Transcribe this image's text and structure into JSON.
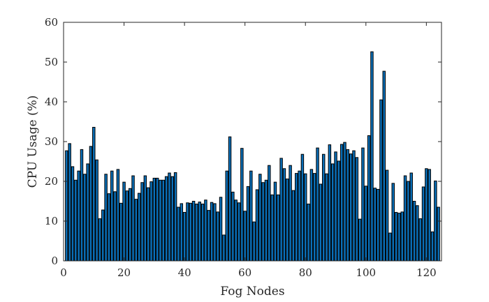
{
  "chart_data": {
    "type": "bar",
    "xlabel": "Fog Nodes",
    "ylabel": "CPU Usage (%)",
    "xlim": [
      0,
      125
    ],
    "ylim": [
      0,
      60
    ],
    "xticks": [
      0,
      20,
      40,
      60,
      80,
      100,
      120
    ],
    "yticks": [
      0,
      10,
      20,
      30,
      40,
      50,
      60
    ],
    "grid": false,
    "bar_color": "#0a6fb8",
    "x": [
      1,
      2,
      3,
      4,
      5,
      6,
      7,
      8,
      9,
      10,
      11,
      12,
      13,
      14,
      15,
      16,
      17,
      18,
      19,
      20,
      21,
      22,
      23,
      24,
      25,
      26,
      27,
      28,
      29,
      30,
      31,
      32,
      33,
      34,
      35,
      36,
      37,
      38,
      39,
      40,
      41,
      42,
      43,
      44,
      45,
      46,
      47,
      48,
      49,
      50,
      51,
      52,
      53,
      54,
      55,
      56,
      57,
      58,
      59,
      60,
      61,
      62,
      63,
      64,
      65,
      66,
      67,
      68,
      69,
      70,
      71,
      72,
      73,
      74,
      75,
      76,
      77,
      78,
      79,
      80,
      81,
      82,
      83,
      84,
      85,
      86,
      87,
      88,
      89,
      90,
      91,
      92,
      93,
      94,
      95,
      96,
      97,
      98,
      99,
      100,
      101,
      102,
      103,
      104,
      105,
      106,
      107,
      108,
      109,
      110,
      111,
      112,
      113,
      114,
      115,
      116,
      117,
      118,
      119,
      120,
      121,
      122,
      123,
      124
    ],
    "values": [
      27.7,
      29.5,
      23.7,
      20.3,
      22.6,
      28.0,
      21.8,
      24.4,
      28.8,
      33.6,
      25.4,
      10.6,
      12.8,
      21.8,
      16.9,
      22.6,
      17.4,
      23.0,
      14.5,
      19.8,
      17.6,
      18.2,
      21.4,
      15.5,
      17.0,
      19.7,
      21.4,
      18.4,
      19.9,
      20.8,
      20.8,
      20.3,
      20.3,
      21.2,
      22.1,
      21.2,
      22.2,
      13.5,
      14.4,
      12.2,
      14.6,
      14.5,
      15.0,
      14.3,
      14.8,
      14.3,
      15.3,
      12.7,
      14.7,
      14.4,
      12.3,
      16.0,
      6.5,
      22.6,
      31.2,
      17.3,
      15.3,
      14.6,
      28.3,
      12.5,
      18.7,
      22.6,
      9.8,
      17.9,
      21.8,
      19.7,
      20.3,
      24.0,
      16.6,
      19.8,
      16.6,
      25.8,
      23.2,
      20.6,
      24.0,
      17.7,
      22.0,
      22.6,
      26.8,
      21.9,
      14.3,
      23.0,
      22.0,
      28.4,
      19.3,
      26.8,
      21.9,
      29.2,
      24.4,
      27.4,
      25.1,
      29.3,
      29.8,
      28.0,
      26.9,
      27.7,
      26.0,
      10.5,
      28.4,
      18.8,
      31.5,
      52.6,
      18.3,
      18.0,
      40.5,
      47.7,
      22.8,
      7.0,
      19.5,
      12.2,
      12.0,
      12.3,
      21.4,
      20.0,
      22.1,
      15.0,
      13.9,
      10.6,
      18.6,
      23.2,
      23.0,
      7.3,
      20.1,
      13.5
    ]
  }
}
